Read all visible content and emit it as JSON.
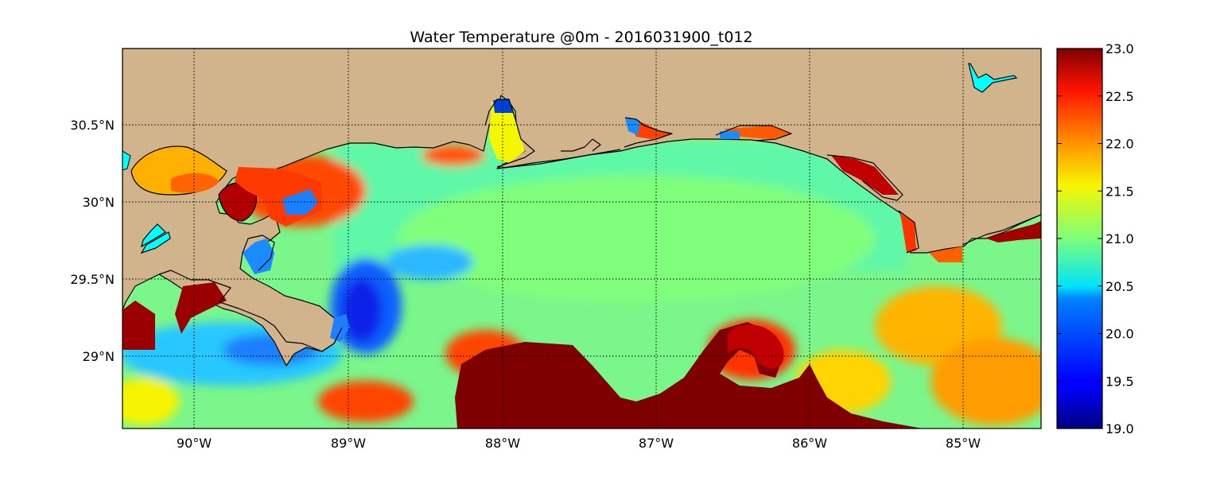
{
  "map": {
    "title": "Water Temperature @0m - 2016031900_t012",
    "variable_unit_note": "",
    "extent": {
      "lon": [
        -90.47,
        -84.5
      ],
      "lat": [
        28.54,
        31.0
      ]
    },
    "land_color": "#D2B48C",
    "coast_color": "#000000",
    "grid": true,
    "x_ticks": [
      {
        "value": -90,
        "label": "90°W"
      },
      {
        "value": -89,
        "label": "89°W"
      },
      {
        "value": -88,
        "label": "88°W"
      },
      {
        "value": -87,
        "label": "87°W"
      },
      {
        "value": -86,
        "label": "86°W"
      },
      {
        "value": -85,
        "label": "85°W"
      }
    ],
    "y_ticks": [
      {
        "value": 30.5,
        "label": "30.5°N"
      },
      {
        "value": 30.0,
        "label": "30°N"
      },
      {
        "value": 29.5,
        "label": "29.5°N"
      },
      {
        "value": 29.0,
        "label": "29°N"
      }
    ]
  },
  "colorbar": {
    "min": 19.0,
    "max": 23.0,
    "colormap": "jet",
    "ticks": [
      "19.0",
      "19.5",
      "20.0",
      "20.5",
      "21.0",
      "21.5",
      "22.0",
      "22.5",
      "23.0"
    ]
  },
  "chart_data": {
    "type": "heatmap",
    "title": "Water Temperature @0m - 2016031900_t012",
    "xlabel": "",
    "ylabel": "",
    "value_range": [
      19.0,
      23.0
    ],
    "features": [
      {
        "lon": -88.0,
        "lat": 28.75,
        "value": 23.0
      },
      {
        "lon": -86.1,
        "lat": 28.7,
        "value": 23.0
      },
      {
        "lon": -86.4,
        "lat": 29.1,
        "value": 23.0
      },
      {
        "lon": -88.8,
        "lat": 29.4,
        "value": 19.2
      },
      {
        "lon": -89.5,
        "lat": 29.05,
        "value": 19.8
      },
      {
        "lon": -88.8,
        "lat": 28.7,
        "value": 22.6
      },
      {
        "lon": -90.1,
        "lat": 30.25,
        "value": 21.9
      },
      {
        "lon": -89.1,
        "lat": 30.2,
        "value": 22.4
      },
      {
        "lon": -87.0,
        "lat": 29.9,
        "value": 20.8
      },
      {
        "lon": -85.2,
        "lat": 29.15,
        "value": 21.8
      },
      {
        "lon": -84.6,
        "lat": 28.6,
        "value": 22.3
      }
    ]
  }
}
